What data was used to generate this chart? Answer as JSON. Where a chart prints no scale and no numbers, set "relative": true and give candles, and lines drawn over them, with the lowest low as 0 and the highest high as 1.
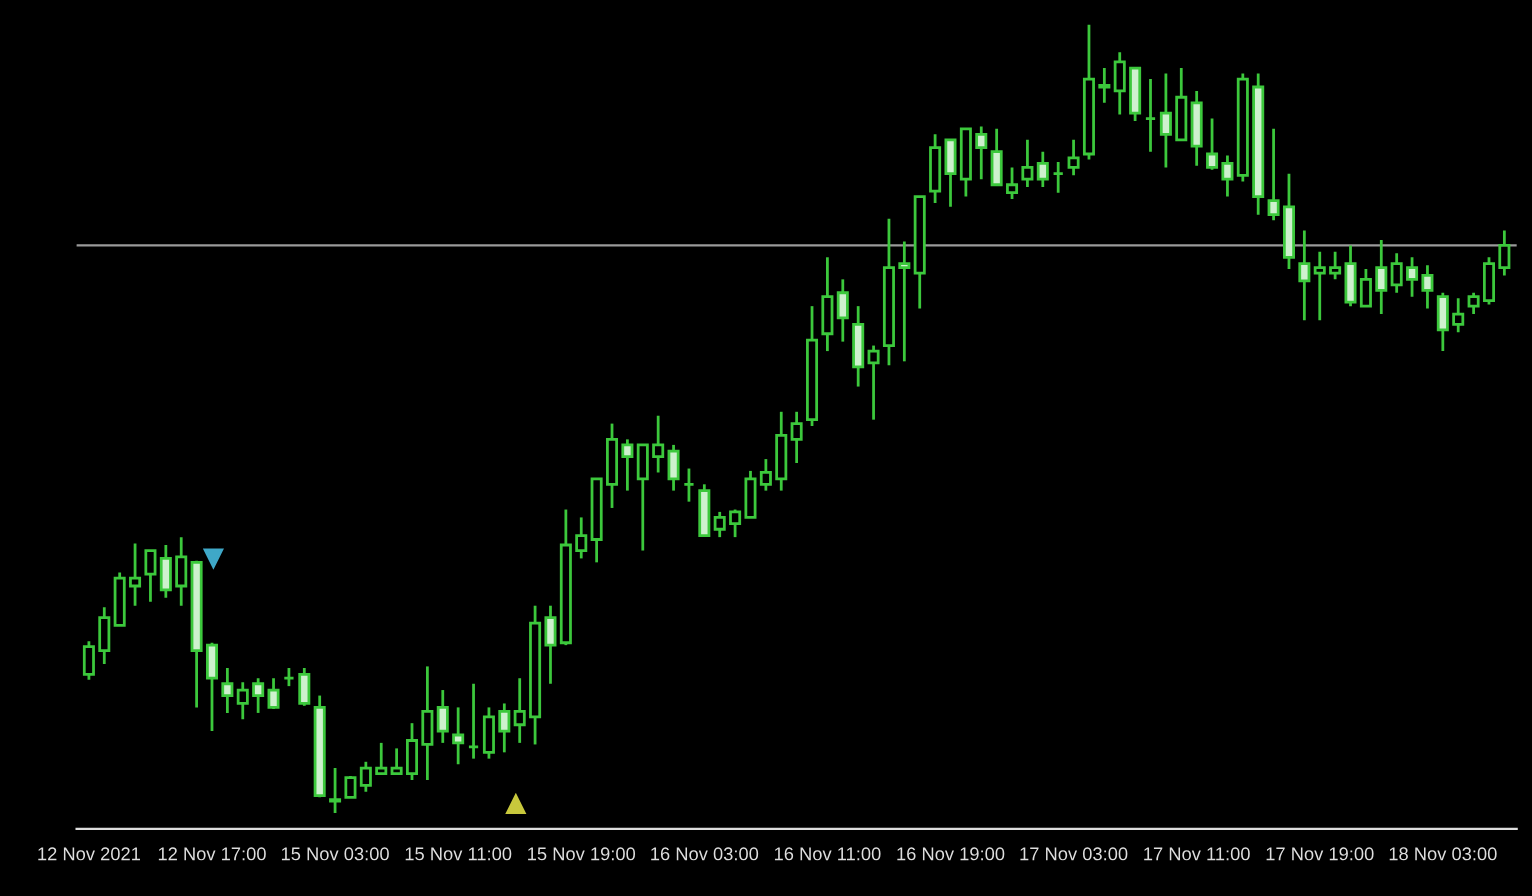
{
  "chart_data": {
    "type": "candlestick",
    "relative": true,
    "color": "#3cc83c",
    "categories": [
      "12 Nov 2021",
      null,
      null,
      null,
      null,
      null,
      null,
      null,
      "12 Nov 17:00",
      null,
      null,
      null,
      null,
      null,
      null,
      null,
      "15 Nov 03:00",
      null,
      null,
      null,
      null,
      null,
      null,
      null,
      "15 Nov 11:00",
      null,
      null,
      null,
      null,
      null,
      null,
      null,
      "15 Nov 19:00",
      null,
      null,
      null,
      null,
      null,
      null,
      null,
      "16 Nov 03:00",
      null,
      null,
      null,
      null,
      null,
      null,
      null,
      "16 Nov 11:00",
      null,
      null,
      null,
      null,
      null,
      null,
      null,
      "16 Nov 19:00",
      null,
      null,
      null,
      null,
      null,
      null,
      null,
      "17 Nov 03:00",
      null,
      null,
      null,
      null,
      null,
      null,
      null,
      "17 Nov 11:00",
      null,
      null,
      null,
      null,
      null,
      null,
      null,
      "17 Nov 19:00",
      null,
      null,
      null,
      null,
      null,
      null,
      null,
      "18 Nov 03:00",
      null,
      null,
      null,
      null
    ],
    "ohlc": [
      [
        0.176,
        0.218,
        0.169,
        0.211
      ],
      [
        0.206,
        0.261,
        0.189,
        0.248
      ],
      [
        0.238,
        0.305,
        0.238,
        0.298
      ],
      [
        0.288,
        0.342,
        0.263,
        0.298
      ],
      [
        0.303,
        0.333,
        0.268,
        0.333
      ],
      [
        0.323,
        0.34,
        0.273,
        0.283
      ],
      [
        0.288,
        0.35,
        0.263,
        0.325
      ],
      [
        0.318,
        0.32,
        0.134,
        0.206
      ],
      [
        0.213,
        0.216,
        0.104,
        0.171
      ],
      [
        0.164,
        0.184,
        0.127,
        0.149
      ],
      [
        0.139,
        0.166,
        0.119,
        0.156
      ],
      [
        0.164,
        0.171,
        0.127,
        0.149
      ],
      [
        0.156,
        0.171,
        0.132,
        0.134
      ],
      [
        0.171,
        0.184,
        0.161,
        0.171
      ],
      [
        0.176,
        0.184,
        0.136,
        0.139
      ],
      [
        0.134,
        0.149,
        0.02,
        0.022
      ],
      [
        0.015,
        0.057,
        0,
        0.017
      ],
      [
        0.02,
        0.047,
        0.02,
        0.045
      ],
      [
        0.035,
        0.065,
        0.027,
        0.057
      ],
      [
        0.05,
        0.089,
        0.05,
        0.057
      ],
      [
        0.05,
        0.082,
        0.05,
        0.057
      ],
      [
        0.05,
        0.114,
        0.042,
        0.092
      ],
      [
        0.087,
        0.186,
        0.042,
        0.129
      ],
      [
        0.134,
        0.156,
        0.089,
        0.104
      ],
      [
        0.099,
        0.134,
        0.062,
        0.089
      ],
      [
        0.084,
        0.164,
        0.069,
        0.084
      ],
      [
        0.077,
        0.134,
        0.069,
        0.122
      ],
      [
        0.129,
        0.139,
        0.077,
        0.104
      ],
      [
        0.112,
        0.171,
        0.089,
        0.129
      ],
      [
        0.122,
        0.263,
        0.087,
        0.241
      ],
      [
        0.248,
        0.263,
        0.164,
        0.213
      ],
      [
        0.216,
        0.385,
        0.213,
        0.34
      ],
      [
        0.333,
        0.375,
        0.323,
        0.352
      ],
      [
        0.347,
        0.424,
        0.318,
        0.424
      ],
      [
        0.417,
        0.494,
        0.387,
        0.474
      ],
      [
        0.467,
        0.474,
        0.409,
        0.452
      ],
      [
        0.424,
        0.467,
        0.333,
        0.467
      ],
      [
        0.452,
        0.504,
        0.432,
        0.467
      ],
      [
        0.459,
        0.467,
        0.409,
        0.424
      ],
      [
        0.417,
        0.437,
        0.395,
        0.417
      ],
      [
        0.409,
        0.417,
        0.352,
        0.352
      ],
      [
        0.36,
        0.382,
        0.35,
        0.375
      ],
      [
        0.367,
        0.385,
        0.35,
        0.382
      ],
      [
        0.375,
        0.434,
        0.375,
        0.424
      ],
      [
        0.417,
        0.449,
        0.409,
        0.432
      ],
      [
        0.424,
        0.509,
        0.409,
        0.479
      ],
      [
        0.474,
        0.509,
        0.444,
        0.494
      ],
      [
        0.499,
        0.643,
        0.491,
        0.6
      ],
      [
        0.608,
        0.705,
        0.586,
        0.655
      ],
      [
        0.66,
        0.677,
        0.598,
        0.628
      ],
      [
        0.62,
        0.643,
        0.541,
        0.566
      ],
      [
        0.571,
        0.593,
        0.499,
        0.586
      ],
      [
        0.593,
        0.754,
        0.568,
        0.692
      ],
      [
        0.697,
        0.725,
        0.573,
        0.692
      ],
      [
        0.685,
        0.782,
        0.64,
        0.782
      ],
      [
        0.789,
        0.861,
        0.774,
        0.844
      ],
      [
        0.854,
        0.854,
        0.769,
        0.811
      ],
      [
        0.804,
        0.868,
        0.782,
        0.868
      ],
      [
        0.861,
        0.871,
        0.804,
        0.844
      ],
      [
        0.839,
        0.868,
        0.797,
        0.797
      ],
      [
        0.787,
        0.819,
        0.779,
        0.797
      ],
      [
        0.804,
        0.854,
        0.794,
        0.819
      ],
      [
        0.824,
        0.839,
        0.794,
        0.804
      ],
      [
        0.811,
        0.826,
        0.787,
        0.811
      ],
      [
        0.819,
        0.854,
        0.809,
        0.831
      ],
      [
        0.836,
        1,
        0.829,
        0.931
      ],
      [
        0.921,
        0.945,
        0.901,
        0.923
      ],
      [
        0.916,
        0.965,
        0.886,
        0.953
      ],
      [
        0.945,
        0.945,
        0.878,
        0.888
      ],
      [
        0.881,
        0.931,
        0.839,
        0.881
      ],
      [
        0.888,
        0.938,
        0.819,
        0.861
      ],
      [
        0.854,
        0.945,
        0.854,
        0.908
      ],
      [
        0.901,
        0.916,
        0.821,
        0.846
      ],
      [
        0.836,
        0.881,
        0.816,
        0.819
      ],
      [
        0.824,
        0.834,
        0.782,
        0.804
      ],
      [
        0.809,
        0.938,
        0.801,
        0.931
      ],
      [
        0.921,
        0.938,
        0.759,
        0.782
      ],
      [
        0.777,
        0.868,
        0.752,
        0.759
      ],
      [
        0.769,
        0.811,
        0.69,
        0.705
      ],
      [
        0.697,
        0.739,
        0.625,
        0.675
      ],
      [
        0.685,
        0.712,
        0.625,
        0.692
      ],
      [
        0.685,
        0.712,
        0.677,
        0.692
      ],
      [
        0.697,
        0.72,
        0.643,
        0.648
      ],
      [
        0.643,
        0.69,
        0.643,
        0.677
      ],
      [
        0.692,
        0.727,
        0.633,
        0.663
      ],
      [
        0.67,
        0.71,
        0.66,
        0.697
      ],
      [
        0.692,
        0.705,
        0.655,
        0.677
      ],
      [
        0.682,
        0.695,
        0.64,
        0.663
      ],
      [
        0.655,
        0.66,
        0.586,
        0.613
      ],
      [
        0.62,
        0.653,
        0.61,
        0.633
      ],
      [
        0.643,
        0.66,
        0.633,
        0.655
      ],
      [
        0.65,
        0.705,
        0.645,
        0.697
      ],
      [
        0.692,
        0.739,
        0.682,
        0.72
      ]
    ],
    "ref_lines": [
      {
        "axis": "y",
        "value": 0.72,
        "color": "#9a9a9a"
      }
    ]
  }
}
